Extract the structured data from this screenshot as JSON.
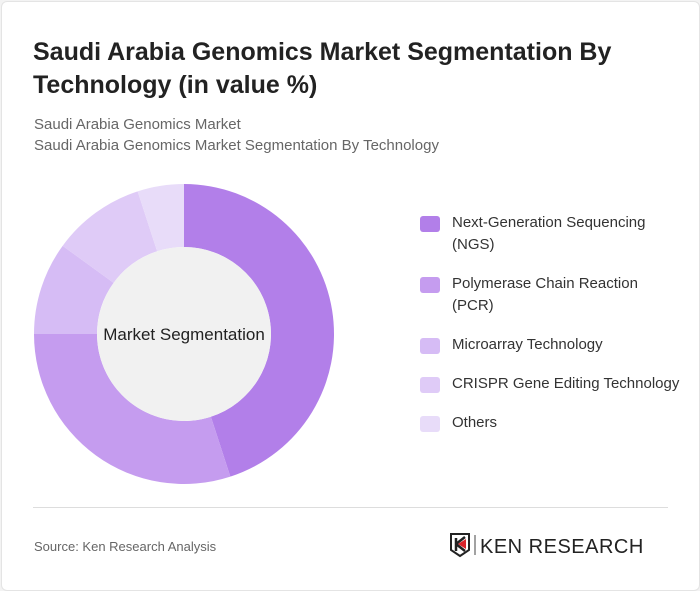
{
  "title": "Saudi Arabia Genomics Market Segmentation By Technology (in value %)",
  "subtitle1": "Saudi Arabia Genomics Market",
  "subtitle2": "Saudi Arabia Genomics Market Segmentation By Technology",
  "source": "Source: Ken Research Analysis",
  "logo_text": "KEN RESEARCH",
  "chart_data": {
    "type": "pie",
    "variant": "donut",
    "center_label": "Market Segmentation",
    "legend_position": "right",
    "categories": [
      "Next-Generation Sequencing (NGS)",
      "Polymerase Chain Reaction (PCR)",
      "Microarray Technology",
      "CRISPR Gene Editing Technology",
      "Others"
    ],
    "values": [
      45,
      30,
      10,
      10,
      5
    ],
    "colors": [
      "#b27fe9",
      "#c59cef",
      "#d6bcf5",
      "#dfcbf7",
      "#e8dcf9"
    ]
  }
}
